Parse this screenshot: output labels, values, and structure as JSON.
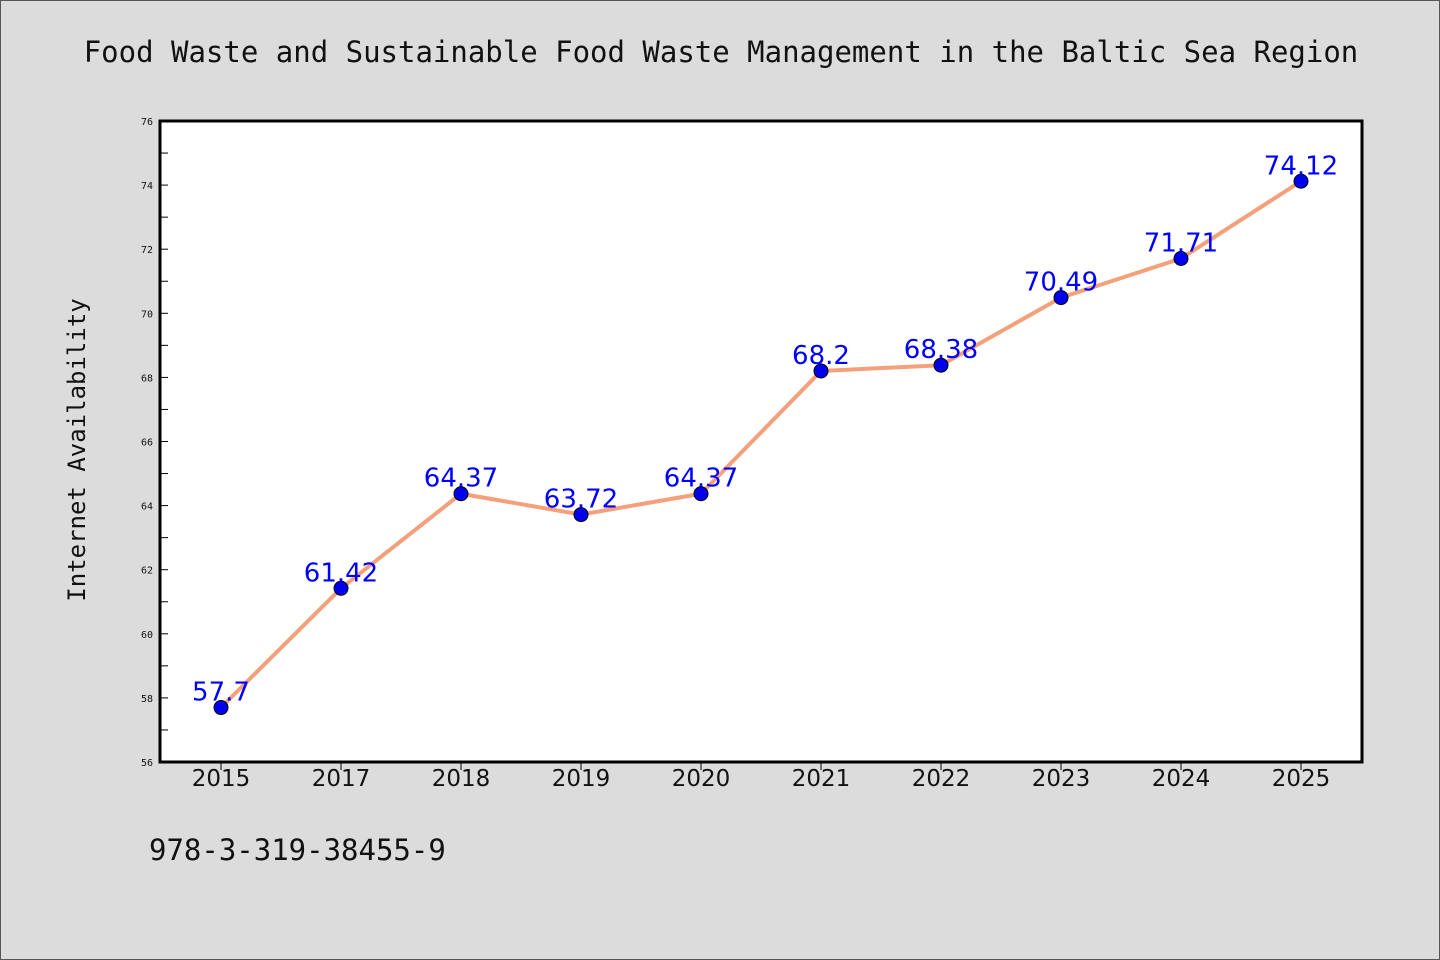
{
  "chart_data": {
    "type": "line",
    "title": "Food Waste and Sustainable Food Waste Management in the Baltic Sea Region",
    "xlabel": "",
    "ylabel": "Internet Availability",
    "categories": [
      "2015",
      "2017",
      "2018",
      "2019",
      "2020",
      "2021",
      "2022",
      "2023",
      "2024",
      "2025"
    ],
    "series": [
      {
        "values": [
          57.7,
          61.42,
          64.37,
          63.72,
          64.37,
          68.2,
          68.38,
          70.49,
          71.71,
          74.12
        ],
        "line_color": "#f4a07a",
        "marker_color": "#0000ee"
      }
    ],
    "data_labels": [
      "57.7",
      "61.42",
      "64.37",
      "63.72",
      "64.37",
      "68.2",
      "68.38",
      "70.49",
      "71.71",
      "74.12"
    ],
    "ylim": [
      56,
      76
    ],
    "yticks": [
      "56",
      "58",
      "60",
      "62",
      "64",
      "66",
      "68",
      "70",
      "72",
      "74",
      "76"
    ],
    "grid": false,
    "legend": "none",
    "data_label_color": "#0000ff",
    "background_color": "#dcdcdc",
    "plot_background_color": "#ffffff"
  },
  "footer": {
    "code": "978-3-319-38455-9"
  }
}
